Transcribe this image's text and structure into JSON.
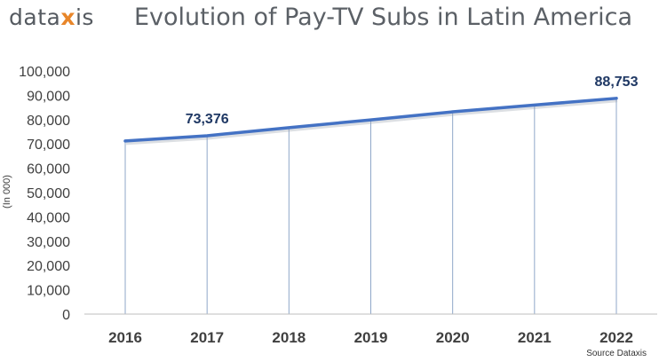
{
  "header": {
    "logo_text": "dataxis",
    "title": "Evolution of Pay-TV Subs in Latin America"
  },
  "footer": {
    "source": "Source Dataxis"
  },
  "colors": {
    "line": "#4472c4",
    "grid_drop": "#8fa7c9",
    "label": "#1f3864",
    "tick": "#404040"
  },
  "chart_data": {
    "type": "line",
    "title": "Evolution of Pay-TV Subs in Latin America",
    "xlabel": "",
    "ylabel": "(In 000)",
    "categories": [
      "2016",
      "2017",
      "2018",
      "2019",
      "2020",
      "2021",
      "2022"
    ],
    "series": [
      {
        "values": [
          71200,
          73376,
          76700,
          79900,
          83200,
          86000,
          88753
        ]
      }
    ],
    "data_labels": [
      {
        "index": 1,
        "text": "73,376"
      },
      {
        "index": 6,
        "text": "88,753"
      }
    ],
    "ylim": [
      0,
      100000
    ],
    "yticks": [
      0,
      10000,
      20000,
      30000,
      40000,
      50000,
      60000,
      70000,
      80000,
      90000,
      100000
    ],
    "ytick_labels": [
      "0",
      "10,000",
      "20,000",
      "30,000",
      "40,000",
      "50,000",
      "60,000",
      "70,000",
      "80,000",
      "90,000",
      "100,000"
    ],
    "drop_lines": true,
    "grid": false,
    "legend": "none"
  }
}
